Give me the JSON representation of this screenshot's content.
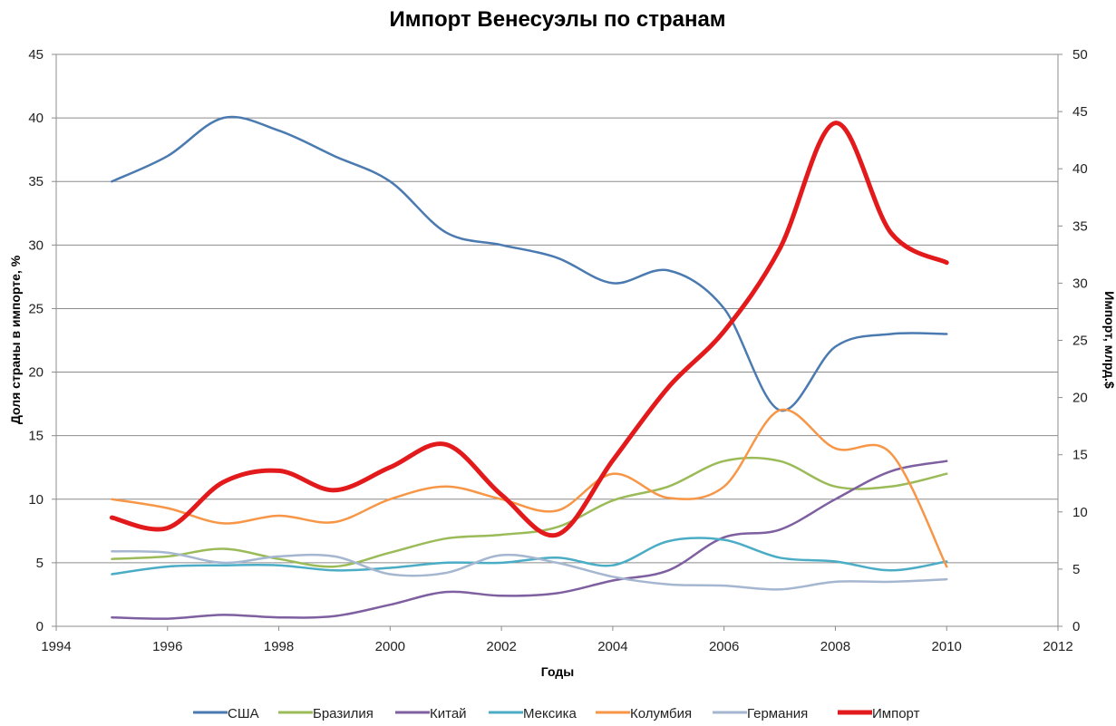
{
  "chart_data": {
    "type": "line",
    "title": "Импорт Венесуэлы по странам",
    "xlabel": "Годы",
    "ylabel_left": "Доля страны в импорте, %",
    "ylabel_right": "Импорт, млрд.$",
    "xlim": [
      1994,
      2012
    ],
    "x_ticks": [
      1994,
      1996,
      1998,
      2000,
      2002,
      2004,
      2006,
      2008,
      2010,
      2012
    ],
    "ylim_left": [
      0,
      45
    ],
    "y_ticks_left": [
      0,
      5,
      10,
      15,
      20,
      25,
      30,
      35,
      40,
      45
    ],
    "ylim_right": [
      0,
      50
    ],
    "y_ticks_right": [
      0,
      5,
      10,
      15,
      20,
      25,
      30,
      35,
      40,
      45,
      50
    ],
    "grid": true,
    "legend_position": "bottom",
    "x": [
      1995,
      1996,
      1997,
      1998,
      1999,
      2000,
      2001,
      2002,
      2003,
      2004,
      2005,
      2006,
      2007,
      2008,
      2009,
      2010
    ],
    "series": [
      {
        "name": "США",
        "axis": "left",
        "color": "#4a7ab0",
        "width": 2.5,
        "values": [
          35,
          37,
          40,
          39,
          37,
          35,
          31,
          30,
          29,
          27,
          28,
          25,
          17,
          22,
          23,
          23
        ]
      },
      {
        "name": "Бразилия",
        "axis": "left",
        "color": "#9bbb59",
        "width": 2.5,
        "values": [
          5.3,
          5.5,
          6.1,
          5.3,
          4.7,
          5.8,
          6.9,
          7.2,
          7.8,
          9.9,
          11,
          13,
          13,
          11,
          11,
          12
        ]
      },
      {
        "name": "Китай",
        "axis": "left",
        "color": "#7e5fa0",
        "width": 2.5,
        "values": [
          0.7,
          0.6,
          0.9,
          0.7,
          0.8,
          1.7,
          2.7,
          2.4,
          2.6,
          3.6,
          4.4,
          7,
          7.6,
          10,
          12.2,
          13
        ]
      },
      {
        "name": "Мексика",
        "axis": "left",
        "color": "#4bacc6",
        "width": 2.5,
        "values": [
          4.1,
          4.7,
          4.8,
          4.8,
          4.4,
          4.6,
          5,
          5,
          5.4,
          4.8,
          6.7,
          6.8,
          5.4,
          5.1,
          4.4,
          5.1
        ]
      },
      {
        "name": "Колумбия",
        "axis": "left",
        "color": "#f79646",
        "width": 2.5,
        "values": [
          10,
          9.3,
          8.1,
          8.7,
          8.2,
          10,
          11,
          10,
          9.1,
          12,
          10.1,
          11,
          17,
          14,
          13.6,
          4.7
        ]
      },
      {
        "name": "Германия",
        "axis": "left",
        "color": "#a5b6d0",
        "width": 2.5,
        "values": [
          5.9,
          5.8,
          5,
          5.5,
          5.5,
          4.1,
          4.2,
          5.6,
          5,
          3.9,
          3.3,
          3.2,
          2.9,
          3.5,
          3.5,
          3.7
        ]
      },
      {
        "name": "Импорт",
        "axis": "right",
        "color": "#e31a1c",
        "width": 5,
        "values": [
          9.5,
          8.6,
          12.6,
          13.6,
          11.9,
          13.9,
          15.9,
          11.5,
          8,
          14.5,
          20.9,
          25.8,
          33,
          44,
          34.4,
          31.8
        ]
      }
    ]
  }
}
